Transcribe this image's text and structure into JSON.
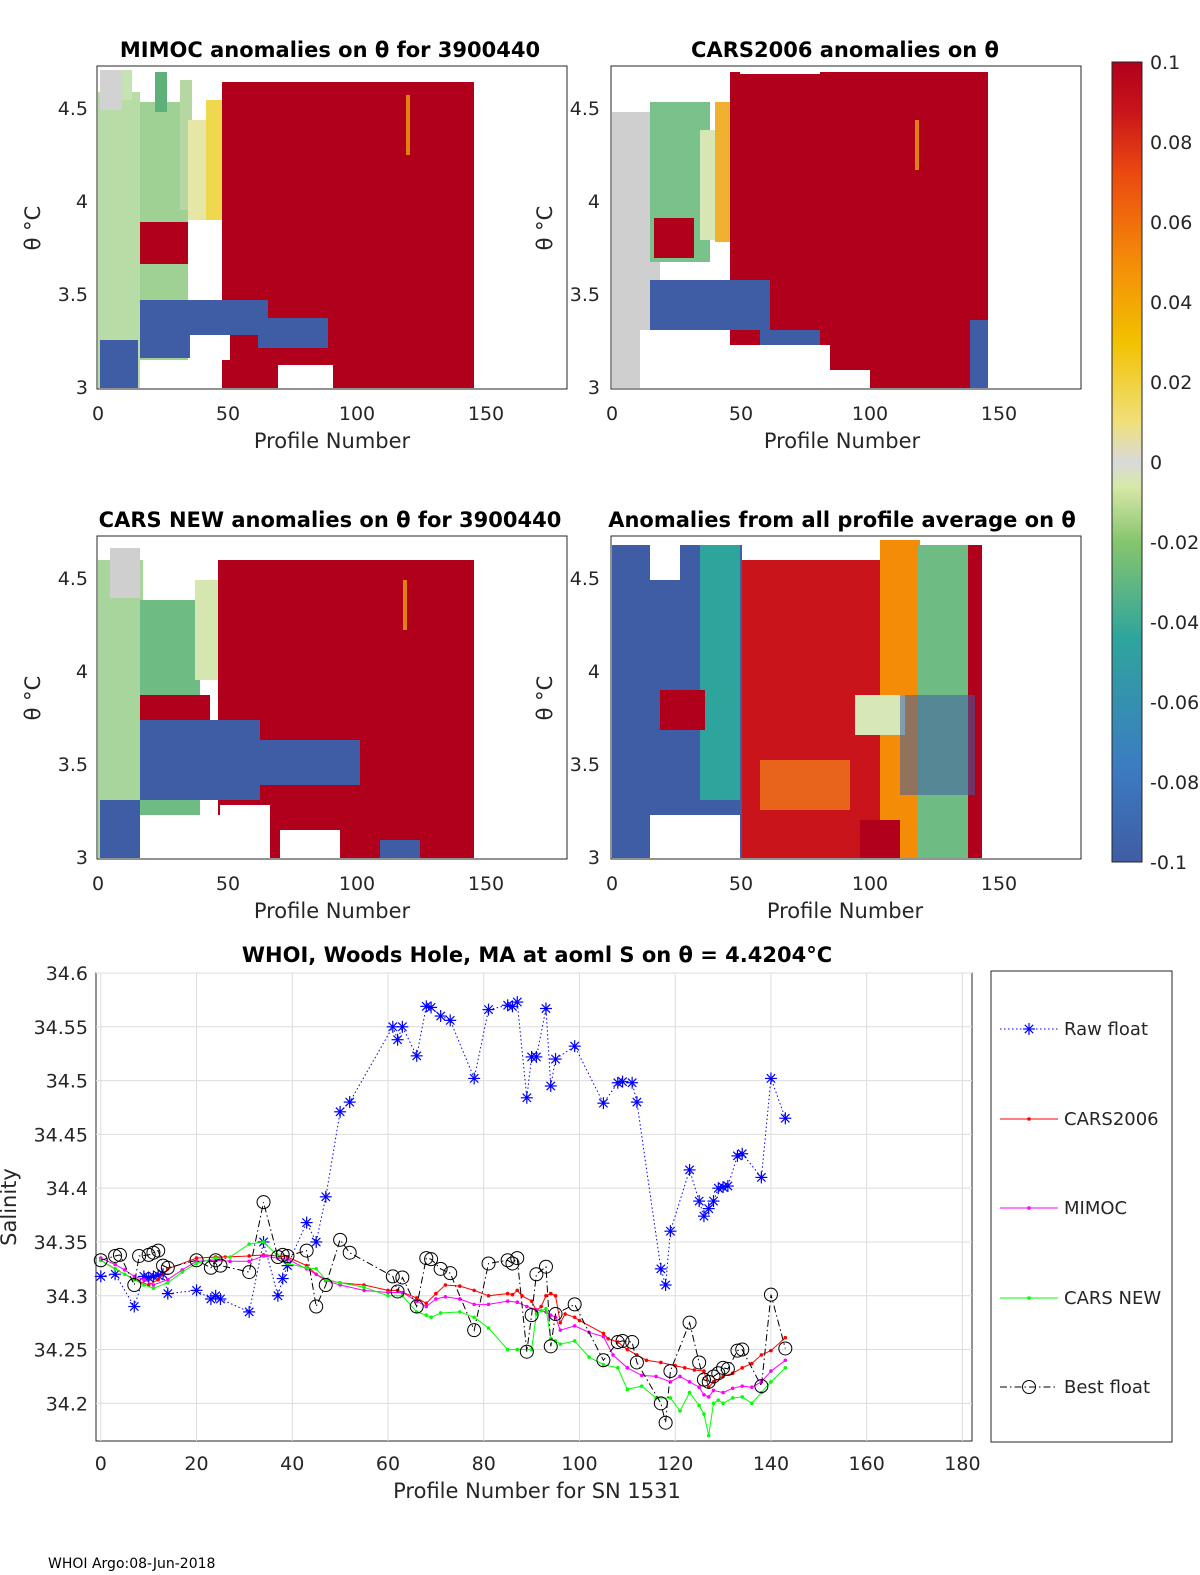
{
  "panels": [
    {
      "title": "MIMOC anomalies on θ  for 3900440",
      "xlabel": "Profile Number",
      "ylabel": "θ °C"
    },
    {
      "title": "CARS2006 anomalies on θ",
      "xlabel": "Profile Number",
      "ylabel": "θ °C"
    },
    {
      "title": "CARS NEW anomalies on θ for 3900440",
      "xlabel": "Profile Number",
      "ylabel": "θ °C"
    },
    {
      "title": "Anomalies from all profile average on θ",
      "xlabel": "Profile Number",
      "ylabel": "θ °C"
    }
  ],
  "panel_xticks": [
    "0",
    "50",
    "100",
    "150"
  ],
  "panel_yticks": [
    "3",
    "3.5",
    "4",
    "4.5"
  ],
  "colorbar": {
    "ticks": [
      "0.1",
      "0.08",
      "0.06",
      "0.04",
      "0.02",
      "0",
      "-0.02",
      "-0.04",
      "-0.06",
      "-0.08",
      "-0.1"
    ]
  },
  "footer": "WHOI Argo:08-Jun-2018",
  "colors": {
    "raw": "#0000ff",
    "cars2006": "#ff0000",
    "mimoc": "#ff00ff",
    "carsnew": "#00ff00",
    "best": "#000000"
  },
  "chart_data": [
    {
      "type": "heatmap",
      "title": "MIMOC anomalies on θ  for 3900440",
      "xlabel": "Profile Number",
      "ylabel": "θ °C",
      "xlim": [
        0,
        180
      ],
      "ylim": [
        2.98,
        4.72
      ],
      "clim": [
        -0.1,
        0.1
      ]
    },
    {
      "type": "heatmap",
      "title": "CARS2006 anomalies on θ",
      "xlabel": "Profile Number",
      "ylabel": "θ °C",
      "xlim": [
        0,
        180
      ],
      "ylim": [
        2.98,
        4.72
      ],
      "clim": [
        -0.1,
        0.1
      ]
    },
    {
      "type": "heatmap",
      "title": "CARS NEW anomalies on θ for 3900440",
      "xlabel": "Profile Number",
      "ylabel": "θ °C",
      "xlim": [
        0,
        180
      ],
      "ylim": [
        2.98,
        4.72
      ],
      "clim": [
        -0.1,
        0.1
      ]
    },
    {
      "type": "heatmap",
      "title": "Anomalies from all profile average on θ",
      "xlabel": "Profile Number",
      "ylabel": "θ °C",
      "xlim": [
        0,
        180
      ],
      "ylim": [
        2.98,
        4.72
      ],
      "clim": [
        -0.1,
        0.1
      ]
    },
    {
      "type": "line",
      "title": "WHOI, Woods Hole, MA at aoml S on θ = 4.4204°C",
      "xlabel": "Profile Number for SN 1531",
      "ylabel": "Salinity",
      "xlim": [
        -1,
        182
      ],
      "ylim": [
        34.165,
        34.6
      ],
      "xticks": [
        "0",
        "20",
        "40",
        "60",
        "80",
        "100",
        "120",
        "140",
        "160",
        "180"
      ],
      "yticks": [
        "34.2",
        "34.25",
        "34.3",
        "34.35",
        "34.4",
        "34.45",
        "34.5",
        "34.55",
        "34.6"
      ],
      "grid": true,
      "legend": "outside-right",
      "series": [
        {
          "name": "Raw float",
          "style": "dotted-star",
          "x": [
            0,
            3,
            7,
            9,
            10,
            11,
            12,
            13,
            14,
            20,
            23,
            24,
            25,
            31,
            34,
            37,
            38,
            39,
            43,
            45,
            47,
            50,
            52,
            61,
            62,
            63,
            66,
            68,
            69,
            71,
            73,
            78,
            81,
            85,
            86,
            87,
            89,
            90,
            91,
            93,
            94,
            95,
            99,
            105,
            108,
            109,
            111,
            112,
            117,
            118,
            119,
            123,
            125,
            126,
            127,
            128,
            129,
            130,
            131,
            133,
            134,
            138,
            140,
            143
          ],
          "y": [
            34.318,
            34.32,
            34.29,
            34.318,
            34.317,
            34.318,
            34.319,
            34.32,
            34.302,
            34.305,
            34.297,
            34.3,
            34.297,
            34.285,
            34.35,
            34.3,
            34.316,
            34.328,
            34.368,
            34.35,
            34.392,
            34.471,
            34.48,
            34.55,
            34.538,
            34.55,
            34.523,
            34.569,
            34.568,
            34.56,
            34.556,
            34.502,
            34.566,
            34.57,
            34.569,
            34.573,
            34.484,
            34.522,
            34.522,
            34.567,
            34.495,
            34.52,
            34.532,
            34.479,
            34.498,
            34.499,
            34.498,
            34.48,
            34.325,
            34.31,
            34.36,
            34.417,
            34.388,
            34.374,
            34.381,
            34.388,
            34.4,
            34.401,
            34.402,
            34.43,
            34.432,
            34.41,
            34.502,
            34.465
          ]
        },
        {
          "name": "CARS2006",
          "style": "solid-dot",
          "x": [
            0,
            3,
            7,
            10,
            12,
            14,
            20,
            24,
            26,
            31,
            34,
            37,
            39,
            43,
            45,
            47,
            50,
            55,
            60,
            62,
            66,
            68,
            70,
            72,
            75,
            78,
            81,
            85,
            86,
            87,
            88,
            90,
            91,
            92,
            93,
            94,
            95,
            96,
            97,
            99,
            100,
            105,
            106,
            108,
            110,
            112,
            114,
            117,
            120,
            122,
            124,
            126,
            127,
            128,
            130,
            132,
            134,
            136,
            138,
            140,
            143
          ],
          "y": [
            34.333,
            34.325,
            34.315,
            34.31,
            34.315,
            34.325,
            34.335,
            34.336,
            34.336,
            34.337,
            34.338,
            34.337,
            34.336,
            34.328,
            34.32,
            34.315,
            34.312,
            34.31,
            34.305,
            34.305,
            34.298,
            34.293,
            34.302,
            34.31,
            34.309,
            34.305,
            34.3,
            34.302,
            34.301,
            34.305,
            34.3,
            34.295,
            34.286,
            34.29,
            34.3,
            34.302,
            34.3,
            34.275,
            34.283,
            34.28,
            34.277,
            34.265,
            34.26,
            34.257,
            34.25,
            34.245,
            34.24,
            34.238,
            34.235,
            34.233,
            34.231,
            34.23,
            34.215,
            34.22,
            34.225,
            34.228,
            34.233,
            34.237,
            34.245,
            34.249,
            34.261
          ]
        },
        {
          "name": "MIMOC",
          "style": "solid-dot",
          "x": [
            0,
            3,
            5,
            7,
            9,
            11,
            14,
            17,
            20,
            24,
            27,
            31,
            34,
            37,
            39,
            43,
            45,
            47,
            50,
            55,
            60,
            63,
            66,
            68,
            70,
            72,
            75,
            78,
            81,
            85,
            87,
            89,
            91,
            93,
            94,
            95,
            96,
            99,
            102,
            105,
            107,
            110,
            113,
            116,
            119,
            121,
            123,
            125,
            126,
            127,
            128,
            130,
            132,
            134,
            136,
            138,
            140,
            143
          ],
          "y": [
            34.335,
            34.329,
            34.324,
            34.318,
            34.315,
            34.31,
            34.315,
            34.324,
            34.332,
            34.333,
            34.332,
            34.332,
            34.337,
            34.335,
            34.334,
            34.325,
            34.32,
            34.314,
            34.31,
            34.305,
            34.303,
            34.303,
            34.295,
            34.29,
            34.297,
            34.299,
            34.297,
            34.292,
            34.292,
            34.295,
            34.294,
            34.29,
            34.287,
            34.285,
            34.282,
            34.28,
            34.268,
            34.272,
            34.266,
            34.262,
            34.245,
            34.233,
            34.226,
            34.225,
            34.22,
            34.225,
            34.22,
            34.215,
            34.208,
            34.206,
            34.212,
            34.21,
            34.214,
            34.216,
            34.215,
            34.22,
            34.23,
            34.24
          ]
        },
        {
          "name": "CARS NEW",
          "style": "solid-dot",
          "x": [
            0,
            3,
            5,
            7,
            9,
            11,
            14,
            17,
            20,
            24,
            27,
            31,
            34,
            37,
            39,
            43,
            45,
            47,
            50,
            55,
            60,
            63,
            66,
            68,
            69,
            71,
            75,
            78,
            81,
            85,
            87,
            90,
            91,
            92,
            93,
            94,
            95,
            96,
            99,
            102,
            105,
            108,
            110,
            113,
            116,
            119,
            121,
            123,
            125,
            126,
            127,
            128,
            129,
            130,
            132,
            134,
            136,
            138,
            140,
            143
          ],
          "y": [
            34.333,
            34.325,
            34.32,
            34.315,
            34.31,
            34.307,
            34.312,
            34.322,
            34.33,
            34.335,
            34.336,
            34.348,
            34.35,
            34.337,
            34.33,
            34.326,
            34.325,
            34.315,
            34.312,
            34.308,
            34.3,
            34.3,
            34.285,
            34.282,
            34.28,
            34.284,
            34.285,
            34.28,
            34.27,
            34.25,
            34.25,
            34.25,
            34.283,
            34.286,
            34.288,
            34.26,
            34.258,
            34.255,
            34.258,
            34.243,
            34.236,
            34.233,
            34.213,
            34.216,
            34.205,
            34.205,
            34.193,
            34.21,
            34.198,
            34.19,
            34.17,
            34.2,
            34.203,
            34.2,
            34.205,
            34.206,
            34.2,
            34.21,
            34.22,
            34.233
          ]
        },
        {
          "name": "Best float",
          "style": "dashdot-circle",
          "x": [
            0,
            3,
            4,
            7,
            8,
            10,
            11,
            12,
            13,
            14,
            20,
            23,
            24,
            25,
            31,
            34,
            37,
            38,
            39,
            43,
            45,
            47,
            50,
            52,
            61,
            62,
            63,
            66,
            68,
            69,
            71,
            73,
            78,
            81,
            85,
            86,
            87,
            89,
            90,
            91,
            93,
            94,
            95,
            99,
            105,
            108,
            109,
            111,
            112,
            117,
            118,
            119,
            123,
            125,
            126,
            127,
            128,
            129,
            130,
            131,
            133,
            134,
            138,
            140,
            143
          ],
          "y": [
            34.333,
            34.337,
            34.338,
            34.31,
            34.337,
            34.338,
            34.34,
            34.342,
            34.328,
            34.326,
            34.333,
            34.326,
            34.333,
            34.328,
            34.322,
            34.387,
            34.336,
            34.338,
            34.337,
            34.342,
            34.29,
            34.31,
            34.352,
            34.34,
            34.318,
            34.304,
            34.317,
            34.29,
            34.335,
            34.334,
            34.325,
            34.321,
            34.268,
            34.33,
            34.333,
            34.33,
            34.335,
            34.248,
            34.282,
            34.32,
            34.327,
            34.253,
            34.283,
            34.292,
            34.24,
            34.257,
            34.258,
            34.257,
            34.238,
            34.2,
            34.182,
            34.23,
            34.275,
            34.238,
            34.222,
            34.22,
            34.225,
            34.228,
            34.233,
            34.232,
            34.249,
            34.25,
            34.216,
            34.301,
            34.251
          ]
        }
      ]
    }
  ]
}
